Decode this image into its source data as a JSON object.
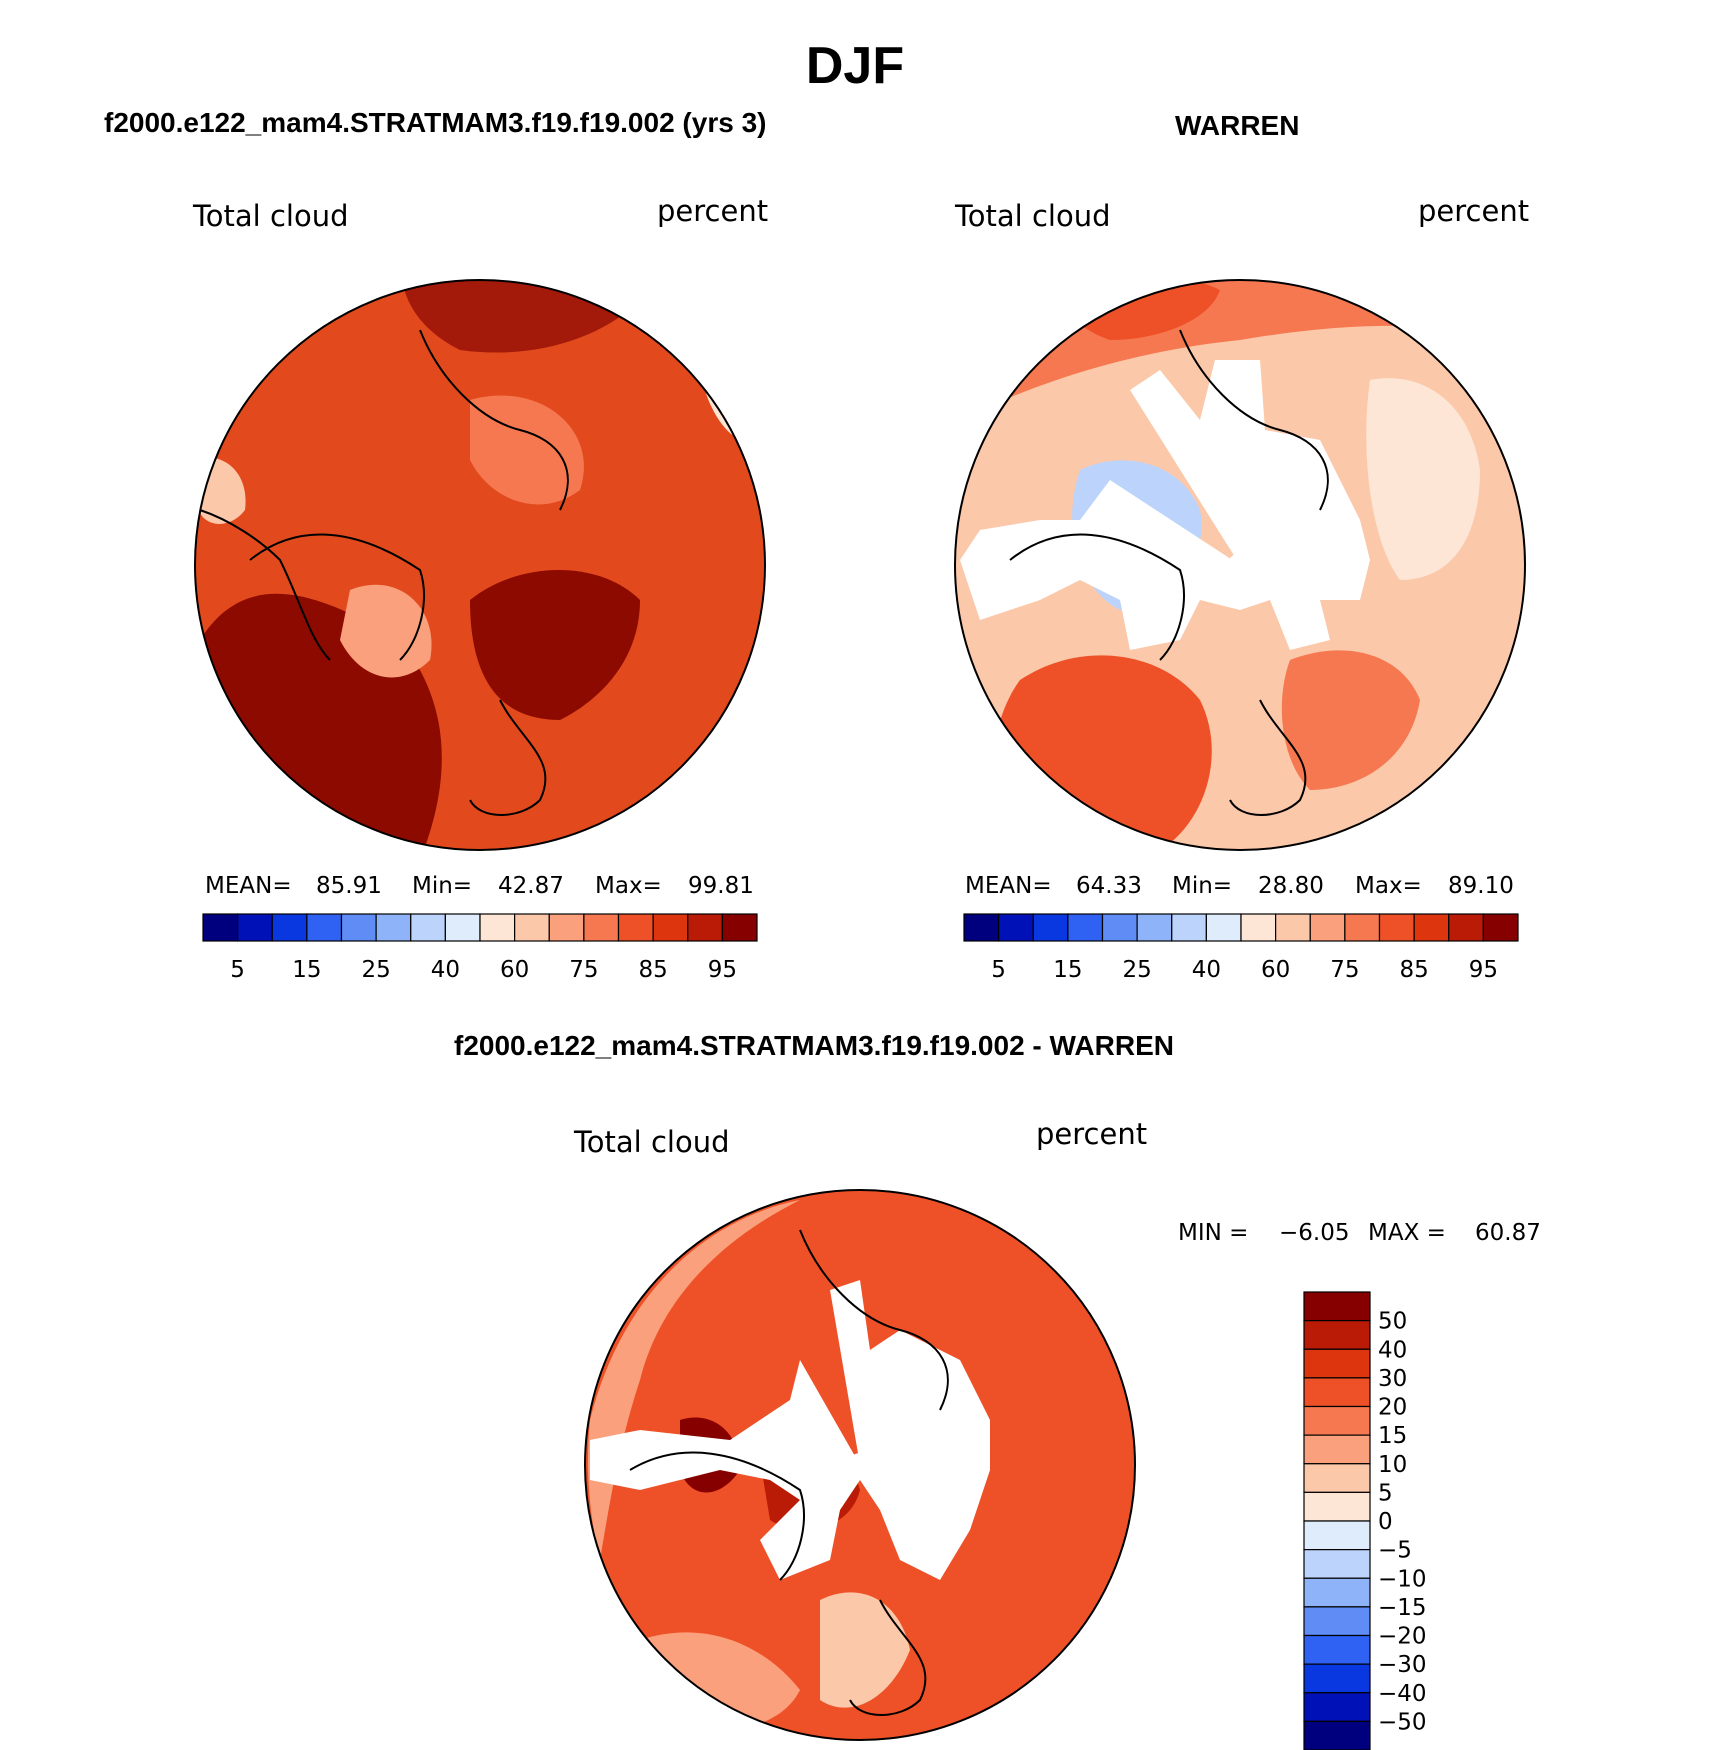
{
  "figure_title": "DJF",
  "chart_data": [
    {
      "type": "heatmap",
      "projection": "north polar stereographic",
      "title": "f2000.e122_mam4.STRATMAM3.f19.f19.002 (yrs 3)",
      "variable": "Total cloud",
      "units": "percent",
      "stats": {
        "mean_label": "MEAN=",
        "mean": "85.91",
        "min_label": "Min=",
        "min": "42.87",
        "max_label": "Max=",
        "max": "99.81"
      },
      "colorbar": {
        "orientation": "horizontal",
        "tick_labels": [
          "5",
          "15",
          "25",
          "40",
          "60",
          "75",
          "85",
          "95"
        ],
        "colors": [
          "#00007f",
          "#0011b8",
          "#0a38e0",
          "#2f62f2",
          "#5f8cf5",
          "#8fb3f8",
          "#bcd3fb",
          "#deecfc",
          "#fde6d6",
          "#fcc8aa",
          "#fba07c",
          "#f67851",
          "#ee5127",
          "#dd360f",
          "#b91b06",
          "#860000"
        ]
      }
    },
    {
      "type": "heatmap",
      "projection": "north polar stereographic",
      "title": "WARREN",
      "variable": "Total cloud",
      "units": "percent",
      "stats": {
        "mean_label": "MEAN=",
        "mean": "64.33",
        "min_label": "Min=",
        "min": "28.80",
        "max_label": "Max=",
        "max": "89.10"
      },
      "colorbar": {
        "orientation": "horizontal",
        "tick_labels": [
          "5",
          "15",
          "25",
          "40",
          "60",
          "75",
          "85",
          "95"
        ],
        "colors": [
          "#00007f",
          "#0011b8",
          "#0a38e0",
          "#2f62f2",
          "#5f8cf5",
          "#8fb3f8",
          "#bcd3fb",
          "#deecfc",
          "#fde6d6",
          "#fcc8aa",
          "#fba07c",
          "#f67851",
          "#ee5127",
          "#dd360f",
          "#b91b06",
          "#860000"
        ]
      }
    },
    {
      "type": "heatmap",
      "projection": "north polar stereographic",
      "title": "f2000.e122_mam4.STRATMAM3.f19.f19.002 - WARREN",
      "variable": "Total cloud",
      "units": "percent",
      "stats": {
        "min_label": "MIN =",
        "min": "−6.05",
        "max_label": "MAX =",
        "max": "60.87"
      },
      "colorbar": {
        "orientation": "vertical",
        "tick_labels": [
          "50",
          "40",
          "30",
          "20",
          "15",
          "10",
          "5",
          "0",
          "−5",
          "−10",
          "−15",
          "−20",
          "−30",
          "−40",
          "−50"
        ],
        "colors": [
          "#860000",
          "#b91b06",
          "#dd360f",
          "#ee5127",
          "#f67851",
          "#fba07c",
          "#fcc8aa",
          "#fde6d6",
          "#deecfc",
          "#bcd3fb",
          "#8fb3f8",
          "#5f8cf5",
          "#2f62f2",
          "#0a38e0",
          "#0011b8",
          "#00007f"
        ]
      }
    }
  ]
}
